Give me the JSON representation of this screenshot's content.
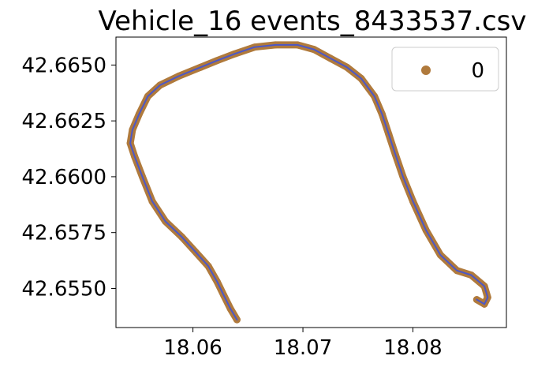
{
  "chart_data": {
    "type": "scatter",
    "title": "Vehicle_16 events_8433537.csv",
    "xlabel": "",
    "ylabel": "",
    "xlim": [
      18.053,
      18.0885
    ],
    "ylim": [
      42.65325,
      42.66625
    ],
    "x_ticks": [
      18.06,
      18.07,
      18.08
    ],
    "x_tick_labels": [
      "18.06",
      "18.07",
      "18.08"
    ],
    "y_ticks": [
      42.655,
      42.6575,
      42.66,
      42.6625,
      42.665
    ],
    "y_tick_labels": [
      "42.6550",
      "42.6575",
      "42.6600",
      "42.6625",
      "42.6650"
    ],
    "grid": false,
    "legend": {
      "position": "upper right",
      "entries": [
        "0"
      ]
    },
    "series": [
      {
        "name": "0",
        "marker_color": "#b07a3c",
        "line_color": "#4b57c8",
        "points": [
          [
            18.064,
            42.6536
          ],
          [
            18.0634,
            42.6541
          ],
          [
            18.0628,
            42.6547
          ],
          [
            18.0622,
            42.6553
          ],
          [
            18.0614,
            42.656
          ],
          [
            18.0603,
            42.6566
          ],
          [
            18.059,
            42.6573
          ],
          [
            18.0575,
            42.658
          ],
          [
            18.0563,
            42.6589
          ],
          [
            18.0554,
            42.66
          ],
          [
            18.0547,
            42.6609
          ],
          [
            18.0543,
            42.6615
          ],
          [
            18.0545,
            42.6621
          ],
          [
            18.0551,
            42.6628
          ],
          [
            18.0559,
            42.6636
          ],
          [
            18.057,
            42.6641
          ],
          [
            18.0587,
            42.6645
          ],
          [
            18.0607,
            42.6649
          ],
          [
            18.0622,
            42.6652
          ],
          [
            18.0638,
            42.6655
          ],
          [
            18.0656,
            42.6658
          ],
          [
            18.0675,
            42.6659
          ],
          [
            18.0695,
            42.6659
          ],
          [
            18.071,
            42.6657
          ],
          [
            18.0725,
            42.6653
          ],
          [
            18.074,
            42.6649
          ],
          [
            18.0753,
            42.6644
          ],
          [
            18.0765,
            42.6636
          ],
          [
            18.0772,
            42.6628
          ],
          [
            18.0778,
            42.6619
          ],
          [
            18.0784,
            42.661
          ],
          [
            18.0791,
            42.66
          ],
          [
            18.08,
            42.6589
          ],
          [
            18.0812,
            42.6576
          ],
          [
            18.0825,
            42.6565
          ],
          [
            18.084,
            42.6558
          ],
          [
            18.0853,
            42.6556
          ],
          [
            18.0865,
            42.6551
          ],
          [
            18.0868,
            42.6546
          ],
          [
            18.0865,
            42.6543
          ],
          [
            18.0858,
            42.6545
          ]
        ]
      }
    ]
  }
}
